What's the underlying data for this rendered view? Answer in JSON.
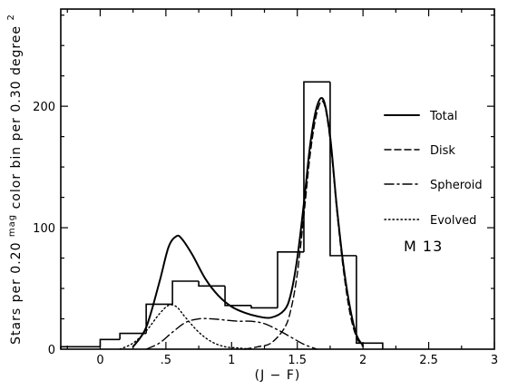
{
  "chart_data": {
    "type": "line",
    "title": "",
    "xlabel": "(J − F)",
    "ylabel": "Stars per 0.20mag color bin per 0.30 degree²",
    "ylabel_parts": {
      "pre": "Stars per 0.20",
      "sup1": "mag",
      "mid": " color bin per 0.30 degree",
      "sup2": "2"
    },
    "xlim": [
      -0.3,
      3.0
    ],
    "ylim": [
      0,
      280
    ],
    "xticks": [
      {
        "value": 0,
        "label": "0"
      },
      {
        "value": 0.5,
        "label": ".5"
      },
      {
        "value": 1,
        "label": "1"
      },
      {
        "value": 1.5,
        "label": "1.5"
      },
      {
        "value": 2,
        "label": "2"
      },
      {
        "value": 2.5,
        "label": "2.5"
      },
      {
        "value": 3,
        "label": "3"
      }
    ],
    "yticks": [
      {
        "value": 0,
        "label": "0"
      },
      {
        "value": 100,
        "label": "100"
      },
      {
        "value": 200,
        "label": "200"
      }
    ],
    "histogram": {
      "name": "observed counts",
      "edges": [
        -0.3,
        0.0,
        0.15,
        0.35,
        0.55,
        0.75,
        0.95,
        1.15,
        1.35,
        1.55,
        1.75,
        1.95,
        2.15
      ],
      "counts": [
        2,
        8,
        13,
        37,
        56,
        52,
        36,
        34,
        80,
        220,
        77,
        5
      ]
    },
    "series": [
      {
        "name": "Total",
        "style": "solid",
        "x": [
          0.25,
          0.35,
          0.45,
          0.52,
          0.58,
          0.62,
          0.7,
          0.8,
          0.9,
          1.0,
          1.1,
          1.2,
          1.3,
          1.4,
          1.45,
          1.5,
          1.55,
          1.6,
          1.65,
          1.7,
          1.75,
          1.8,
          1.85,
          1.9,
          1.95,
          2.0
        ],
        "y": [
          2,
          18,
          55,
          84,
          93,
          91,
          78,
          58,
          44,
          35,
          30,
          27,
          26,
          32,
          45,
          75,
          120,
          170,
          200,
          205,
          175,
          118,
          70,
          35,
          12,
          3
        ]
      },
      {
        "name": "Disk",
        "style": "dashed",
        "x": [
          1.1,
          1.2,
          1.3,
          1.4,
          1.45,
          1.5,
          1.55,
          1.6,
          1.65,
          1.7,
          1.75,
          1.8,
          1.85,
          1.9,
          1.95,
          2.0
        ],
        "y": [
          0,
          2,
          5,
          17,
          32,
          62,
          110,
          162,
          195,
          203,
          172,
          115,
          66,
          30,
          10,
          2
        ]
      },
      {
        "name": "Spheroid",
        "style": "dashdot",
        "x": [
          0.35,
          0.45,
          0.55,
          0.65,
          0.75,
          0.85,
          0.95,
          1.05,
          1.15,
          1.25,
          1.35,
          1.45,
          1.55,
          1.65
        ],
        "y": [
          0,
          5,
          14,
          22,
          25,
          25,
          24,
          23,
          23,
          21,
          16,
          10,
          4,
          0
        ]
      },
      {
        "name": "Evolved",
        "style": "dotted",
        "x": [
          0.15,
          0.25,
          0.35,
          0.45,
          0.52,
          0.58,
          0.65,
          0.75,
          0.85,
          0.95,
          1.05,
          1.15
        ],
        "y": [
          0,
          5,
          15,
          29,
          36,
          35,
          26,
          14,
          6,
          2,
          1,
          0
        ]
      }
    ],
    "legend": {
      "position": "right",
      "entries": [
        "Total",
        "Disk",
        "Spheroid",
        "Evolved"
      ]
    },
    "annotation": "M 13"
  }
}
